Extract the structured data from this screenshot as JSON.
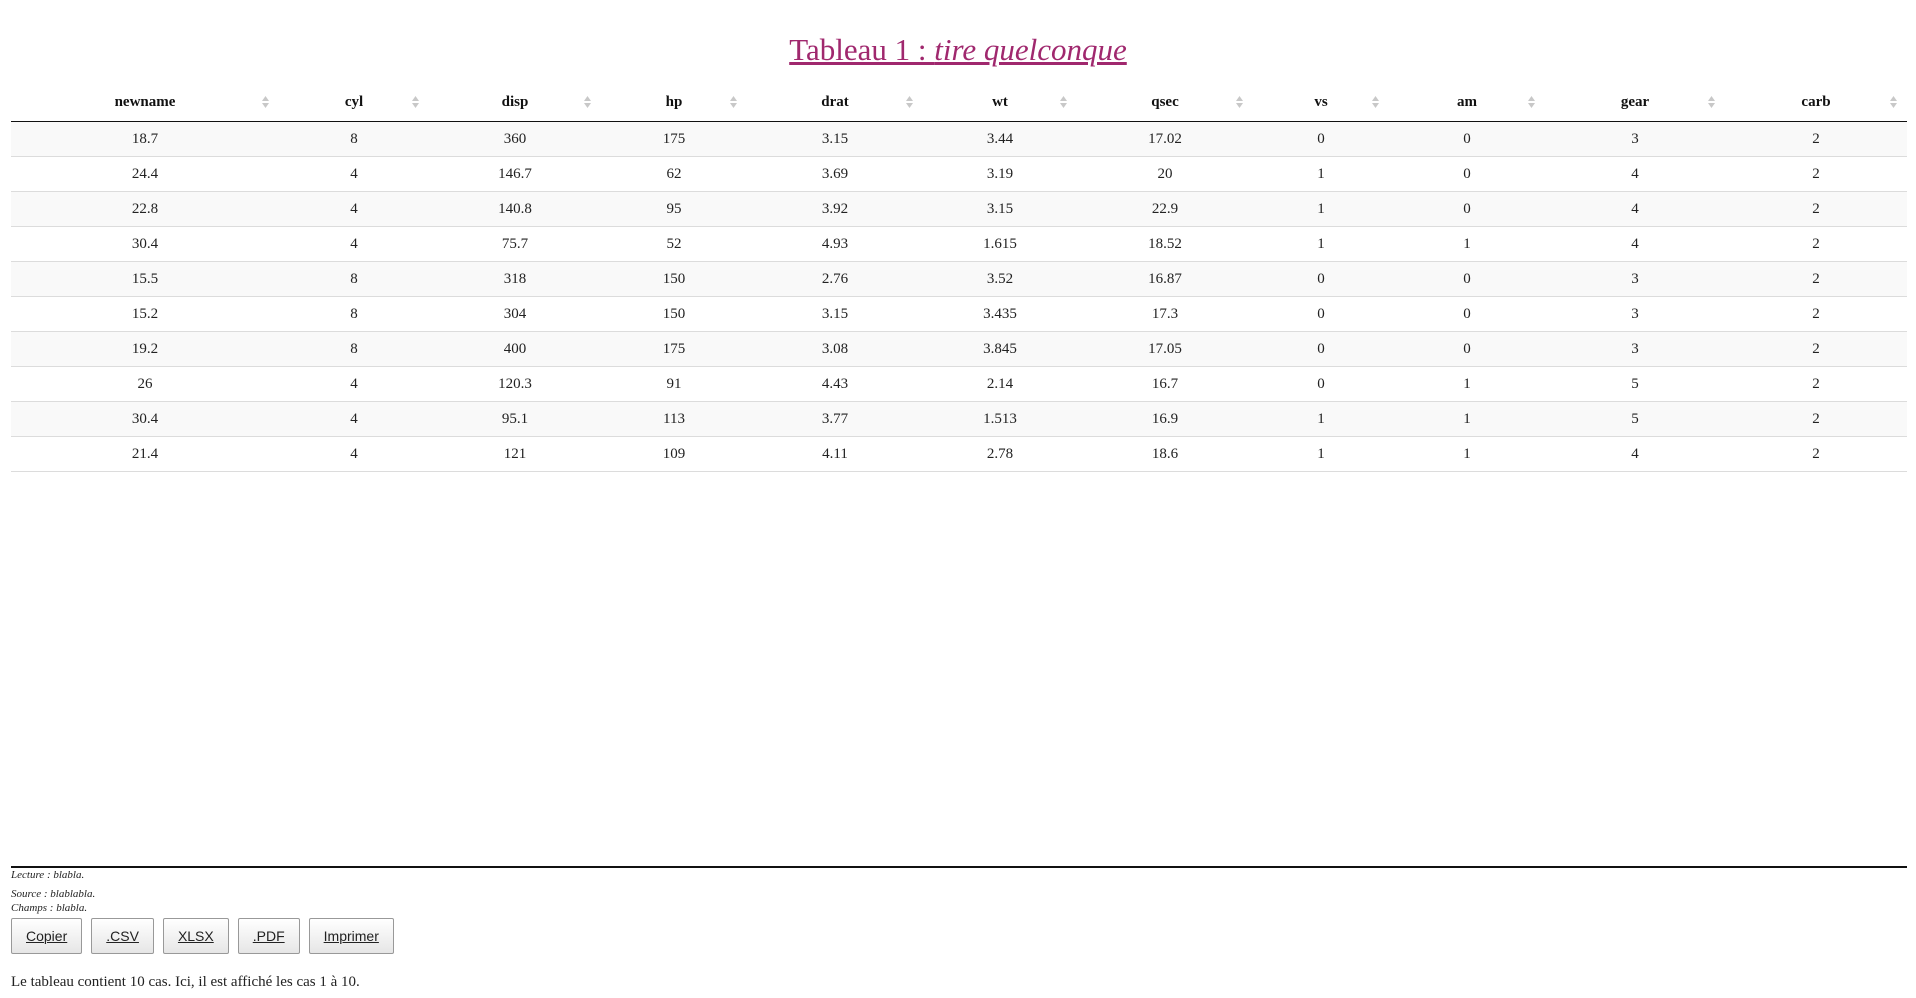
{
  "title": {
    "main": "Tableau 1 : ",
    "italic": "tire quelconque"
  },
  "table": {
    "columns": [
      "newname",
      "cyl",
      "disp",
      "hp",
      "drat",
      "wt",
      "qsec",
      "vs",
      "am",
      "gear",
      "carb"
    ],
    "rows": [
      [
        "18.7",
        "8",
        "360",
        "175",
        "3.15",
        "3.44",
        "17.02",
        "0",
        "0",
        "3",
        "2"
      ],
      [
        "24.4",
        "4",
        "146.7",
        "62",
        "3.69",
        "3.19",
        "20",
        "1",
        "0",
        "4",
        "2"
      ],
      [
        "22.8",
        "4",
        "140.8",
        "95",
        "3.92",
        "3.15",
        "22.9",
        "1",
        "0",
        "4",
        "2"
      ],
      [
        "30.4",
        "4",
        "75.7",
        "52",
        "4.93",
        "1.615",
        "18.52",
        "1",
        "1",
        "4",
        "2"
      ],
      [
        "15.5",
        "8",
        "318",
        "150",
        "2.76",
        "3.52",
        "16.87",
        "0",
        "0",
        "3",
        "2"
      ],
      [
        "15.2",
        "8",
        "304",
        "150",
        "3.15",
        "3.435",
        "17.3",
        "0",
        "0",
        "3",
        "2"
      ],
      [
        "19.2",
        "8",
        "400",
        "175",
        "3.08",
        "3.845",
        "17.05",
        "0",
        "0",
        "3",
        "2"
      ],
      [
        "26",
        "4",
        "120.3",
        "91",
        "4.43",
        "2.14",
        "16.7",
        "0",
        "1",
        "5",
        "2"
      ],
      [
        "30.4",
        "4",
        "95.1",
        "113",
        "3.77",
        "1.513",
        "16.9",
        "1",
        "1",
        "5",
        "2"
      ],
      [
        "21.4",
        "4",
        "121",
        "109",
        "4.11",
        "2.78",
        "18.6",
        "1",
        "1",
        "4",
        "2"
      ]
    ],
    "sort_icon": "sort-both-icon"
  },
  "notes": {
    "lecture": "Lecture : blabla.",
    "source": "Source : blablabla.",
    "champs": "Champs : blabla."
  },
  "buttons": {
    "copy": "Copier",
    "csv": ".CSV",
    "xlsx": "XLSX",
    "pdf": ".PDF",
    "print": "Imprimer"
  },
  "info": "Le tableau contient 10 cas. Ici, il est affiché les cas 1 à 10.",
  "colors": {
    "title": "#a0286e",
    "stripe": "#f9f9f9",
    "sort_icon": "#c8c8c8"
  }
}
